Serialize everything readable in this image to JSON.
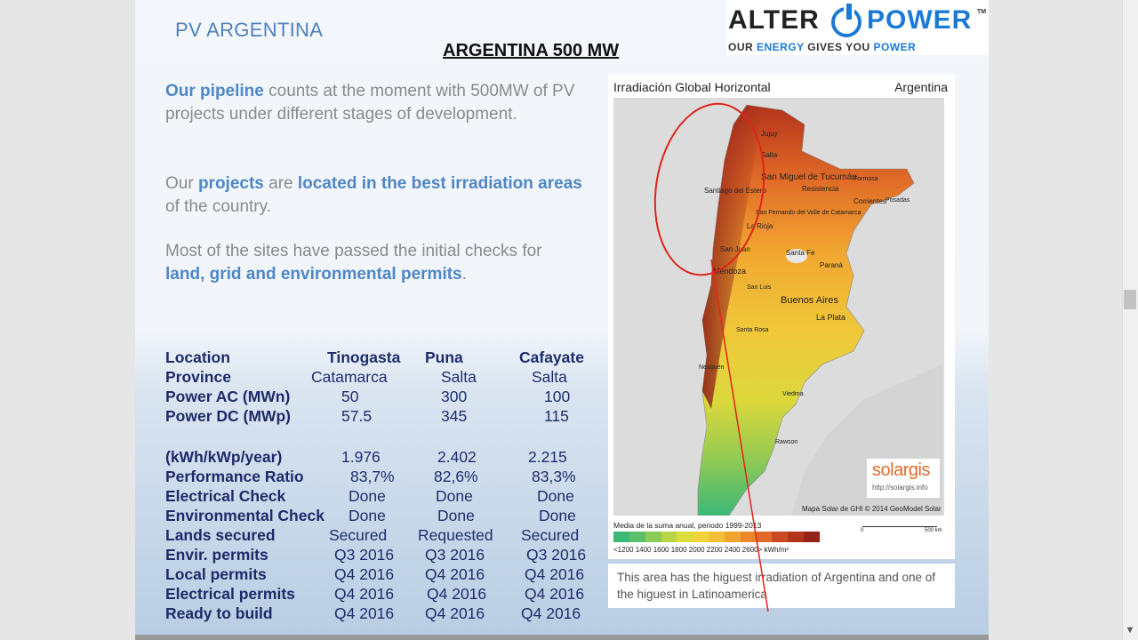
{
  "header": {
    "title": "PV ARGENTINA",
    "main_title": "ARGENTINA 500 MW"
  },
  "logo": {
    "alter": "ALTER",
    "power": "POWER",
    "tm": "TM",
    "tag_1": "OUR ",
    "tag_2": "ENERGY",
    "tag_3": " GIVES YOU ",
    "tag_4": "POWER"
  },
  "para1": {
    "hl": "Our pipeline",
    "text": " counts at the moment with 500MW of PV projects under different stages of development."
  },
  "para2": {
    "t1": "Our ",
    "hl1": "projects",
    "t2": " are ",
    "hl2": "located in the best irradiation areas",
    "t3": " of the country."
  },
  "para3": {
    "t1": "Most of the sites have passed the initial checks for ",
    "hl": "land, grid and environmental permits",
    "t2": "."
  },
  "table": {
    "rows": [
      [
        "Location",
        "Tinogasta",
        "Puna",
        "Cafayate"
      ],
      [
        "Province",
        "Catamarca",
        "Salta",
        "Salta"
      ],
      [
        "Power AC (MWn)",
        "50",
        "300",
        "100"
      ],
      [
        "Power DC (MWp)",
        "57.5",
        "345",
        "115"
      ],
      [
        "(kWh/kWp/year)",
        "1.976",
        "2.402",
        "2.215"
      ],
      [
        "Performance Ratio",
        "83,7%",
        "82,6%",
        "83,3%"
      ],
      [
        "Electrical Check",
        "Done",
        "Done",
        "Done"
      ],
      [
        "Environmental Check",
        "Done",
        "Done",
        "Done"
      ],
      [
        "Lands secured",
        "Secured",
        "Requested",
        "Secured"
      ],
      [
        "Envir. permits",
        "Q3 2016",
        "Q3 2016",
        "Q3 2016"
      ],
      [
        "Local permits",
        "Q4 2016",
        "Q4 2016",
        "Q4 2016"
      ],
      [
        "Electrical permits",
        "Q4 2016",
        "Q4 2016",
        "Q4 2016"
      ],
      [
        "Ready to build",
        "Q4 2016",
        "Q4 2016",
        "Q4 2016"
      ]
    ]
  },
  "map": {
    "head_left": "Irradiación Global Horizontal",
    "head_right": "Argentina",
    "cities": [
      "Jujuy",
      "Salta",
      "San Miguel de Tucumán",
      "Formosa",
      "Santiago del Estero",
      "Resistencia",
      "Corrientes",
      "Posadas",
      "San Fernando del Valle de Catamarca",
      "La Rioja",
      "San Juan",
      "Santa Fe",
      "Mendoza",
      "Paraná",
      "San Luis",
      "Buenos Aires",
      "La Plata",
      "Santa Rosa",
      "Neuquén",
      "Viedma",
      "Rawson"
    ],
    "solargis": "solargis",
    "solargis_url": "http://solargis.info",
    "credit": "Mapa Solar de GHI © 2014 GeoModel Solar",
    "legend_title": "Media de la suma anual, periodo 1999-2013",
    "legend_ticks": "<1200   1400   1600   1800   2000   2200   2400   2600>  kWh/m²",
    "scale_left": "0",
    "scale_right": "500 km",
    "legend_colors": [
      "#3cb878",
      "#5cc06a",
      "#8ccb55",
      "#b9d545",
      "#dcdc3c",
      "#f0d43a",
      "#f3c035",
      "#f1a530",
      "#ec872b",
      "#e06a27",
      "#cc4a22",
      "#b2341c",
      "#94231a"
    ]
  },
  "caption": "This area has the higuest irradiation of Argentina and one of the higuest in Latinoamerica"
}
